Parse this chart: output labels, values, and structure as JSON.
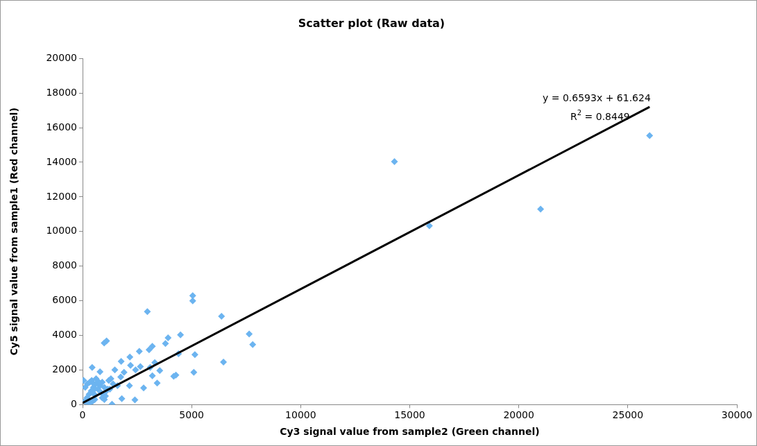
{
  "chart_data": {
    "type": "scatter",
    "title": "Scatter plot (Raw data)",
    "xlabel": "Cy3 signal value from sample2 (Green channel)",
    "ylabel": "Cy5 signal value from sample1 (Red channel)",
    "xlim": [
      0,
      30000
    ],
    "xticks": [
      0,
      5000,
      10000,
      15000,
      20000,
      25000,
      30000
    ],
    "ylim": [
      0,
      20000
    ],
    "yticks": [
      0,
      2000,
      4000,
      6000,
      8000,
      10000,
      12000,
      14000,
      16000,
      18000,
      20000
    ],
    "grid": false,
    "legend": false,
    "marker": "diamond",
    "annotations": [
      "y = 0.6593x + 61.624",
      "R$^{2}$ = 0.8449"
    ],
    "series": [
      {
        "color": "#6cb4f0",
        "x": [
          14300,
          15900,
          21000,
          26000,
          5050,
          5050,
          2970,
          6370,
          7640,
          7800,
          1100,
          990,
          4490,
          3920,
          3800,
          3200,
          3050,
          2600,
          4400,
          5150,
          2170,
          1770,
          2200,
          440,
          800,
          3310,
          2650,
          2430,
          1480,
          3540,
          6460,
          5100,
          4280,
          4180,
          3100,
          3200,
          3420,
          2800,
          2400,
          1350,
          1800,
          1900,
          1750,
          2150,
          100,
          200,
          300,
          400,
          500,
          600,
          700,
          800,
          900,
          1000,
          1100,
          1200,
          1300,
          450,
          550,
          750,
          850,
          950,
          1050,
          1150,
          50,
          120,
          220,
          330,
          420,
          520,
          620,
          900,
          1000,
          1250,
          1400,
          1600,
          580,
          260,
          360,
          460,
          560
        ],
        "values": [
          14040,
          10330,
          11290,
          15540,
          6300,
          6000,
          5370,
          5100,
          4080,
          3470,
          3680,
          3560,
          4030,
          3860,
          3530,
          3370,
          3170,
          3080,
          2940,
          2890,
          2750,
          2500,
          2270,
          2150,
          1900,
          2430,
          2200,
          2010,
          2010,
          1970,
          2460,
          1870,
          1710,
          1640,
          2150,
          1670,
          1250,
          970,
          280,
          30,
          350,
          1870,
          1600,
          1100,
          200,
          400,
          600,
          800,
          1000,
          1200,
          900,
          1100,
          1300,
          1000,
          800,
          1400,
          1500,
          700,
          900,
          1300,
          700,
          600,
          500,
          900,
          1400,
          1000,
          1200,
          1300,
          1400,
          1200,
          1500,
          400,
          300,
          900,
          1200,
          1100,
          550,
          80,
          120,
          200,
          300
        ]
      },
      {
        "type": "line",
        "color": "#000000",
        "marker": "none",
        "x": [
          0,
          26000
        ],
        "values": [
          100,
          17200
        ]
      }
    ]
  }
}
